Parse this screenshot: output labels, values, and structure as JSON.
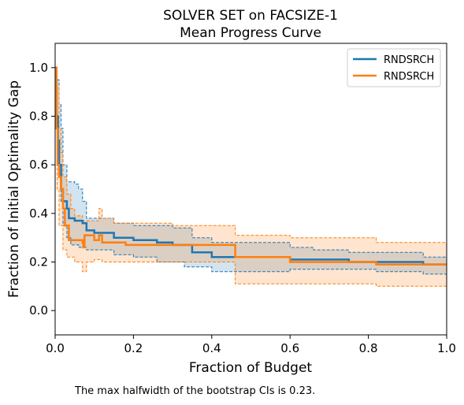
{
  "chart_data": {
    "type": "line",
    "title_line1": "SOLVER SET on FACSIZE-1",
    "title_line2": "Mean Progress Curve",
    "xlabel": "Fraction of Budget",
    "ylabel": "Fraction of Initial Optimality Gap",
    "xlim": [
      0,
      1
    ],
    "ylim": [
      -0.1,
      1.1
    ],
    "xticks": [
      0,
      0.2,
      0.4,
      0.6,
      0.8,
      1.0
    ],
    "xtick_labels": [
      "0.0",
      "0.2",
      "0.4",
      "0.6",
      "0.8",
      "1.0"
    ],
    "yticks": [
      0,
      0.2,
      0.4,
      0.6,
      0.8,
      1.0
    ],
    "ytick_labels": [
      "0.0",
      "0.2",
      "0.4",
      "0.6",
      "0.8",
      "1.0"
    ],
    "grid": false,
    "legend_position": "top-right",
    "series": [
      {
        "name": "RNDSRCH",
        "color": "#1f77b4",
        "mean": [
          [
            0,
            1.0
          ],
          [
            0.003,
            0.8
          ],
          [
            0.007,
            0.7
          ],
          [
            0.01,
            0.6
          ],
          [
            0.015,
            0.5
          ],
          [
            0.02,
            0.45
          ],
          [
            0.03,
            0.42
          ],
          [
            0.035,
            0.38
          ],
          [
            0.05,
            0.37
          ],
          [
            0.07,
            0.36
          ],
          [
            0.08,
            0.33
          ],
          [
            0.1,
            0.32
          ],
          [
            0.12,
            0.32
          ],
          [
            0.15,
            0.3
          ],
          [
            0.2,
            0.29
          ],
          [
            0.26,
            0.28
          ],
          [
            0.3,
            0.27
          ],
          [
            0.35,
            0.24
          ],
          [
            0.4,
            0.22
          ],
          [
            0.5,
            0.22
          ],
          [
            0.6,
            0.21
          ],
          [
            0.66,
            0.21
          ],
          [
            0.75,
            0.2
          ],
          [
            0.82,
            0.2
          ],
          [
            0.94,
            0.19
          ],
          [
            1.0,
            0.19
          ]
        ],
        "ci_lower": [
          [
            0,
            1.0
          ],
          [
            0.005,
            0.7
          ],
          [
            0.01,
            0.55
          ],
          [
            0.015,
            0.45
          ],
          [
            0.02,
            0.35
          ],
          [
            0.03,
            0.3
          ],
          [
            0.04,
            0.27
          ],
          [
            0.06,
            0.26
          ],
          [
            0.08,
            0.25
          ],
          [
            0.12,
            0.25
          ],
          [
            0.15,
            0.23
          ],
          [
            0.2,
            0.22
          ],
          [
            0.26,
            0.2
          ],
          [
            0.33,
            0.18
          ],
          [
            0.4,
            0.16
          ],
          [
            0.5,
            0.16
          ],
          [
            0.6,
            0.17
          ],
          [
            0.66,
            0.17
          ],
          [
            0.75,
            0.17
          ],
          [
            0.82,
            0.16
          ],
          [
            0.94,
            0.15
          ],
          [
            1.0,
            0.15
          ]
        ],
        "ci_upper": [
          [
            0,
            1.0
          ],
          [
            0.005,
            0.95
          ],
          [
            0.01,
            0.85
          ],
          [
            0.015,
            0.75
          ],
          [
            0.02,
            0.6
          ],
          [
            0.03,
            0.53
          ],
          [
            0.05,
            0.52
          ],
          [
            0.06,
            0.5
          ],
          [
            0.07,
            0.45
          ],
          [
            0.08,
            0.38
          ],
          [
            0.1,
            0.38
          ],
          [
            0.12,
            0.38
          ],
          [
            0.15,
            0.36
          ],
          [
            0.2,
            0.35
          ],
          [
            0.3,
            0.34
          ],
          [
            0.35,
            0.3
          ],
          [
            0.4,
            0.28
          ],
          [
            0.5,
            0.28
          ],
          [
            0.6,
            0.26
          ],
          [
            0.66,
            0.25
          ],
          [
            0.75,
            0.24
          ],
          [
            0.82,
            0.24
          ],
          [
            0.94,
            0.22
          ],
          [
            1.0,
            0.22
          ]
        ]
      },
      {
        "name": "RNDSRCH",
        "color": "#ff7f0e",
        "mean": [
          [
            0,
            1.0
          ],
          [
            0.003,
            0.75
          ],
          [
            0.006,
            0.6
          ],
          [
            0.01,
            0.55
          ],
          [
            0.015,
            0.5
          ],
          [
            0.02,
            0.42
          ],
          [
            0.025,
            0.35
          ],
          [
            0.035,
            0.29
          ],
          [
            0.07,
            0.28
          ],
          [
            0.072,
            0.26
          ],
          [
            0.075,
            0.31
          ],
          [
            0.1,
            0.29
          ],
          [
            0.112,
            0.31
          ],
          [
            0.12,
            0.28
          ],
          [
            0.18,
            0.27
          ],
          [
            0.21,
            0.27
          ],
          [
            0.3,
            0.27
          ],
          [
            0.46,
            0.22
          ],
          [
            0.6,
            0.2
          ],
          [
            0.82,
            0.19
          ],
          [
            1.0,
            0.19
          ]
        ],
        "ci_lower": [
          [
            0,
            0.95
          ],
          [
            0.005,
            0.5
          ],
          [
            0.01,
            0.35
          ],
          [
            0.02,
            0.25
          ],
          [
            0.03,
            0.22
          ],
          [
            0.05,
            0.2
          ],
          [
            0.07,
            0.16
          ],
          [
            0.08,
            0.2
          ],
          [
            0.1,
            0.21
          ],
          [
            0.12,
            0.2
          ],
          [
            0.2,
            0.2
          ],
          [
            0.3,
            0.2
          ],
          [
            0.46,
            0.11
          ],
          [
            0.6,
            0.11
          ],
          [
            0.82,
            0.1
          ],
          [
            0.94,
            0.1
          ],
          [
            1.0,
            0.1
          ]
        ],
        "ci_upper": [
          [
            0,
            1.0
          ],
          [
            0.005,
            0.92
          ],
          [
            0.01,
            0.75
          ],
          [
            0.015,
            0.65
          ],
          [
            0.02,
            0.55
          ],
          [
            0.03,
            0.48
          ],
          [
            0.04,
            0.42
          ],
          [
            0.05,
            0.39
          ],
          [
            0.07,
            0.37
          ],
          [
            0.1,
            0.37
          ],
          [
            0.112,
            0.42
          ],
          [
            0.12,
            0.38
          ],
          [
            0.15,
            0.36
          ],
          [
            0.2,
            0.36
          ],
          [
            0.3,
            0.35
          ],
          [
            0.46,
            0.31
          ],
          [
            0.6,
            0.3
          ],
          [
            0.82,
            0.28
          ],
          [
            1.0,
            0.28
          ]
        ]
      }
    ],
    "footnote": "The max halfwidth of the bootstrap CIs is 0.23."
  }
}
